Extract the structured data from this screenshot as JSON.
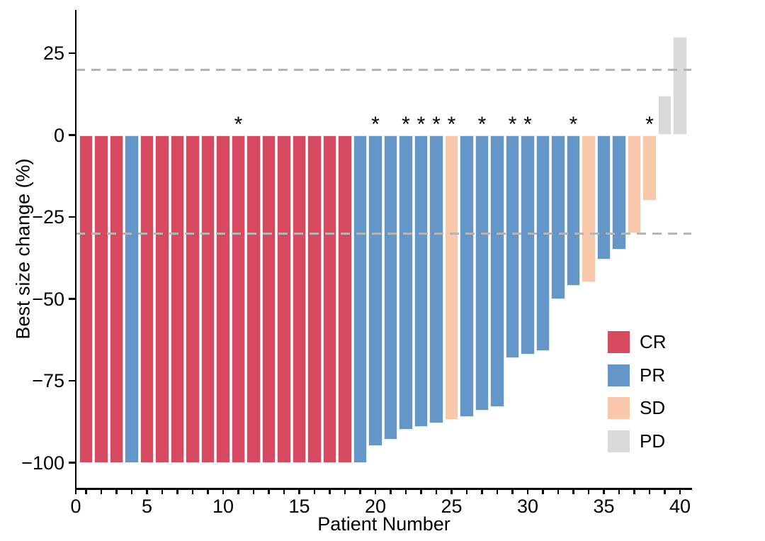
{
  "figure": {
    "kind": "waterfall-plot",
    "background": "#ffffff"
  },
  "chart_data": {
    "type": "bar",
    "title": "",
    "xlabel": "Patient Number",
    "ylabel": "Best size change (%)",
    "patients": [
      1,
      2,
      3,
      4,
      5,
      6,
      7,
      8,
      9,
      10,
      11,
      12,
      13,
      14,
      15,
      16,
      17,
      18,
      19,
      20,
      21,
      22,
      23,
      24,
      25,
      26,
      27,
      28,
      29,
      30,
      31,
      32,
      33,
      34,
      35,
      36,
      37,
      38,
      39,
      40
    ],
    "values": [
      -100,
      -100,
      -100,
      -100,
      -100,
      -100,
      -100,
      -100,
      -100,
      -100,
      -100,
      -100,
      -100,
      -100,
      -100,
      -100,
      -100,
      -100,
      -100,
      -95,
      -93,
      -90,
      -89,
      -88,
      -87,
      -86,
      -84,
      -83,
      -68,
      -67,
      -66,
      -50,
      -46,
      -45,
      -38,
      -35,
      -30,
      -20,
      12,
      30
    ],
    "responses": [
      "CR",
      "CR",
      "CR",
      "PR",
      "CR",
      "CR",
      "CR",
      "CR",
      "CR",
      "CR",
      "CR",
      "CR",
      "CR",
      "CR",
      "CR",
      "CR",
      "CR",
      "CR",
      "PR",
      "PR",
      "PR",
      "PR",
      "PR",
      "PR",
      "SD",
      "PR",
      "PR",
      "PR",
      "PR",
      "PR",
      "PR",
      "PR",
      "PR",
      "SD",
      "PR",
      "PR",
      "SD",
      "SD",
      "PD",
      "PD"
    ],
    "annotated_patients": [
      11,
      20,
      22,
      23,
      24,
      25,
      27,
      29,
      30,
      33,
      38
    ],
    "annotation_symbol": "*",
    "reference_lines_y": [
      20,
      -30
    ],
    "reference_line_color": "#b5b5b5",
    "yticks": [
      25,
      0,
      -25,
      -50,
      -75,
      -100
    ],
    "xticks": [
      0,
      5,
      10,
      15,
      20,
      25,
      30,
      35,
      40
    ],
    "ylim": [
      -107,
      37
    ],
    "xlim": [
      0.3,
      40.8
    ],
    "grid": false,
    "legend_position": "inside-right",
    "legend": [
      {
        "label": "CR",
        "color": "#d6495f"
      },
      {
        "label": "PR",
        "color": "#6496c8"
      },
      {
        "label": "SD",
        "color": "#f9c7aa"
      },
      {
        "label": "PD",
        "color": "#d9d9d9"
      }
    ],
    "colors": {
      "CR": "#d6495f",
      "PR": "#6496c8",
      "SD": "#f9c7aa",
      "PD": "#d9d9d9"
    },
    "axis_color": "#000000"
  }
}
